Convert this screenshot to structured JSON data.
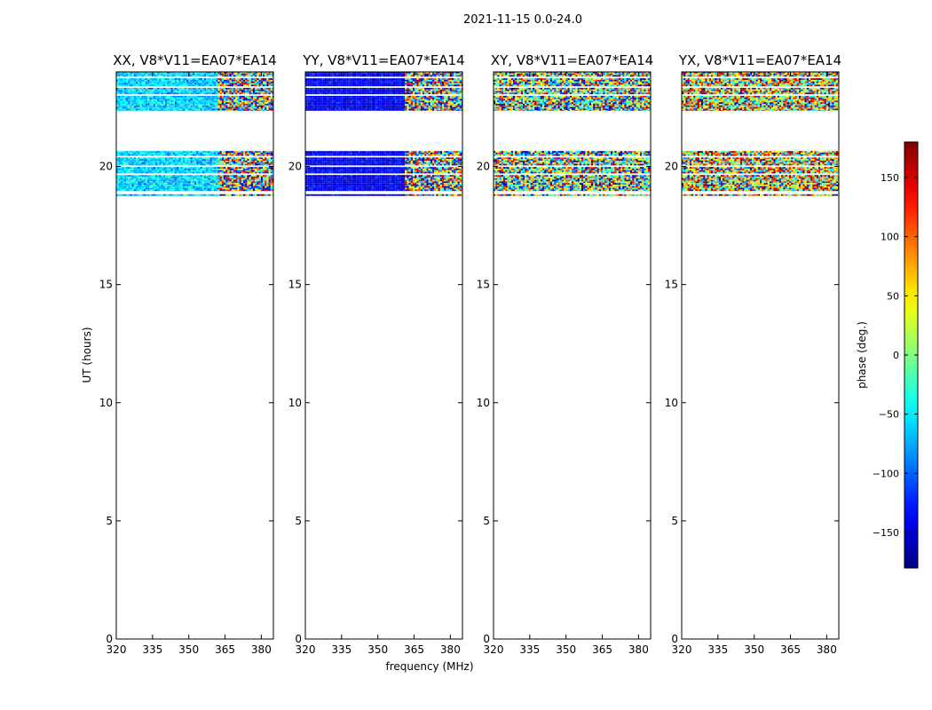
{
  "figure": {
    "suptitle": "2021-11-15 0.0-24.0",
    "xlabel": "frequency (MHz)",
    "ylabel": "UT (hours)"
  },
  "chart_data": {
    "type": "heatmap",
    "xlim": [
      320,
      385
    ],
    "ylim": [
      0,
      24
    ],
    "xticks": [
      320,
      335,
      350,
      365,
      380
    ],
    "yticks": [
      0,
      5,
      10,
      15,
      20
    ],
    "data_rows_ut": [
      [
        18.75,
        20.65
      ],
      [
        22.35,
        24.0
      ]
    ],
    "panels": [
      {
        "title": "XX, V8*V11=EA07*EA14",
        "mean_phase_deg": -60,
        "spread_deg": 40,
        "noisy_from_mhz": 362
      },
      {
        "title": "YY, V8*V11=EA07*EA14",
        "mean_phase_deg": -140,
        "spread_deg": 25,
        "noisy_from_mhz": 361
      },
      {
        "title": "XY, V8*V11=EA07*EA14",
        "mean_phase_deg": 0,
        "spread_deg": 180,
        "noisy_from_mhz": 320
      },
      {
        "title": "YX, V8*V11=EA07*EA14",
        "mean_phase_deg": 40,
        "spread_deg": 180,
        "noisy_from_mhz": 320
      }
    ],
    "colorbar": {
      "label": "phase (deg.)",
      "vmin": -180,
      "vmax": 180,
      "ticks": [
        -150,
        -100,
        -50,
        0,
        50,
        100,
        150
      ],
      "tick_labels": [
        "−150",
        "−100",
        "−50",
        "0",
        "50",
        "100",
        "150"
      ],
      "colormap": "jet"
    }
  }
}
